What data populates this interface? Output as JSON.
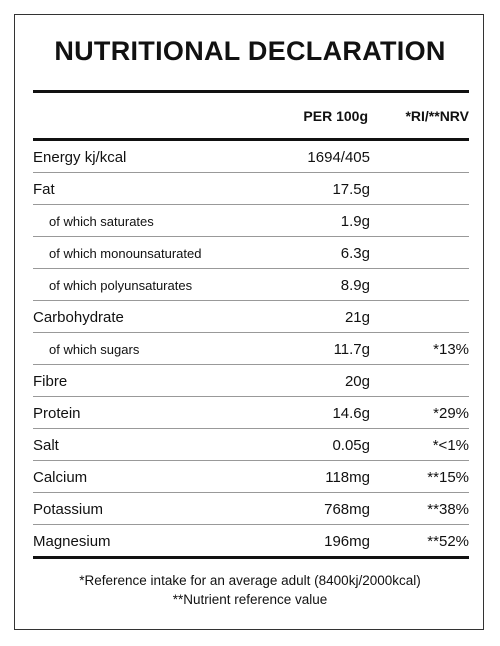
{
  "title": "NUTRITIONAL DECLARATION",
  "table": {
    "header": {
      "per_100g": "PER 100g",
      "ri": "*RI/**NRV"
    },
    "rows": [
      {
        "label": "Energy kj/kcal",
        "per_100g": "1694/405"
      },
      {
        "label": "Fat",
        "per_100g": "17.5g"
      },
      {
        "label": "of which saturates",
        "per_100g": "1.9g"
      },
      {
        "label": "of which monounsaturated",
        "per_100g": "6.3g"
      },
      {
        "label": "of which polyunsaturates",
        "per_100g": "8.9g"
      },
      {
        "label": "Carbohydrate",
        "per_100g": "21g"
      },
      {
        "label": "of which sugars",
        "per_100g": "11.7g",
        "ri": "*13%"
      },
      {
        "label": "Fibre",
        "per_100g": "20g"
      },
      {
        "label": "Protein",
        "per_100g": "14.6g",
        "ri": "*29%"
      },
      {
        "label": "Salt",
        "per_100g": "0.05g",
        "ri": "*<1%"
      },
      {
        "label": "Calcium",
        "per_100g": "118mg",
        "ri": "**15%"
      },
      {
        "label": "Potassium",
        "per_100g": "768mg",
        "ri": "**38%"
      },
      {
        "label": "Magnesium",
        "per_100g": "196mg",
        "ri": "**52%"
      }
    ]
  },
  "footnotes": [
    "*Reference intake for an average adult (8400kj/2000kcal)",
    "**Nutrient reference value"
  ]
}
